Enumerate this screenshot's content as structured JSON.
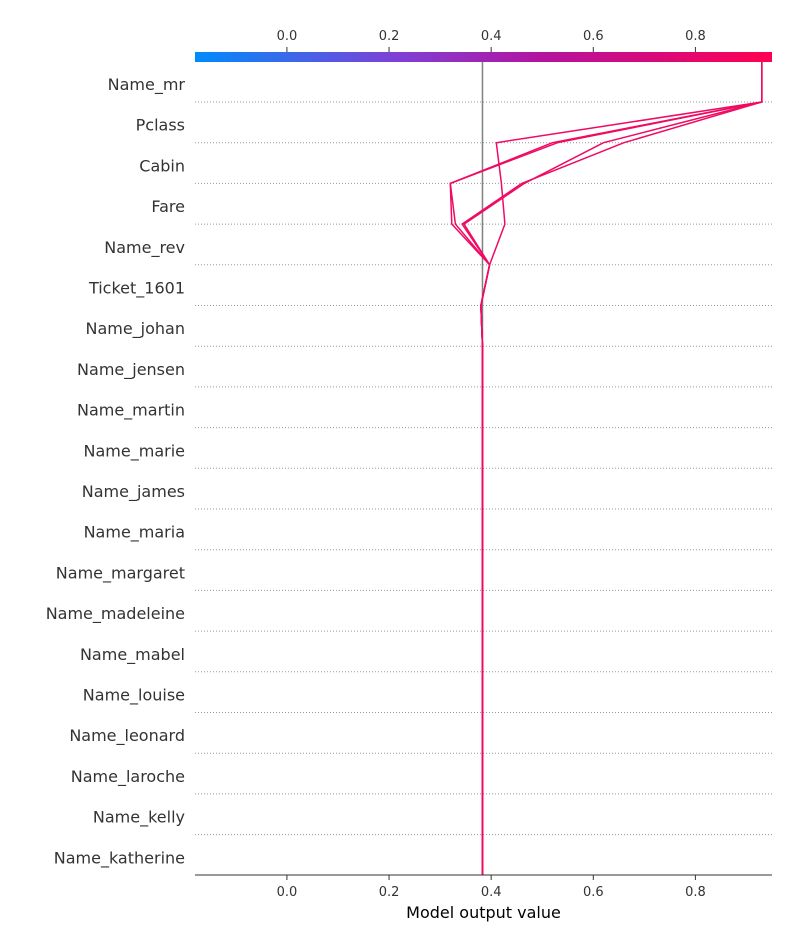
{
  "chart_data": {
    "type": "line",
    "xlabel": "Model output value",
    "xlim": [
      -0.18,
      0.95
    ],
    "base_value": 0.383,
    "ticks": [
      0.0,
      0.2,
      0.4,
      0.6,
      0.8
    ],
    "tick_labels": [
      "0.0",
      "0.2",
      "0.4",
      "0.6",
      "0.8"
    ],
    "features": [
      "Name_mr",
      "Pclass",
      "Cabin",
      "Fare",
      "Name_rev",
      "Ticket_1601",
      "Name_johan",
      "Name_jensen",
      "Name_martin",
      "Name_marie",
      "Name_james",
      "Name_maria",
      "Name_margaret",
      "Name_madeleine",
      "Name_mabel",
      "Name_louise",
      "Name_leonard",
      "Name_laroche",
      "Name_kelly",
      "Name_katherine"
    ],
    "series": [
      {
        "values": [
          0.93,
          0.53,
          0.32,
          0.33,
          0.397,
          0.38,
          0.383,
          0.383,
          0.383,
          0.383,
          0.383,
          0.383,
          0.383,
          0.383,
          0.383,
          0.383,
          0.383,
          0.383,
          0.383,
          0.383
        ]
      },
      {
        "values": [
          0.93,
          0.52,
          0.32,
          0.323,
          0.397,
          0.38,
          0.383,
          0.383,
          0.383,
          0.383,
          0.383,
          0.383,
          0.383,
          0.383,
          0.383,
          0.383,
          0.383,
          0.383,
          0.383,
          0.383
        ]
      },
      {
        "values": [
          0.93,
          0.41,
          0.42,
          0.427,
          0.397,
          0.38,
          0.383,
          0.383,
          0.383,
          0.383,
          0.383,
          0.383,
          0.383,
          0.383,
          0.383,
          0.383,
          0.383,
          0.383,
          0.383,
          0.383
        ]
      },
      {
        "values": [
          0.93,
          0.66,
          0.46,
          0.343,
          0.397,
          0.38,
          0.383,
          0.383,
          0.383,
          0.383,
          0.383,
          0.383,
          0.383,
          0.383,
          0.383,
          0.383,
          0.383,
          0.383,
          0.383,
          0.383
        ]
      },
      {
        "values": [
          0.93,
          0.62,
          0.465,
          0.347,
          0.397,
          0.38,
          0.383,
          0.383,
          0.383,
          0.383,
          0.383,
          0.383,
          0.383,
          0.383,
          0.383,
          0.383,
          0.383,
          0.383,
          0.383,
          0.383
        ]
      }
    ],
    "line_color": "#ef0a62",
    "colorbar": {
      "colors": [
        "#008bfb",
        "#7f40d6",
        "#b3139f",
        "#ff0052"
      ]
    },
    "grid": "dotted-horizontal",
    "base_line_color": "#808080"
  }
}
